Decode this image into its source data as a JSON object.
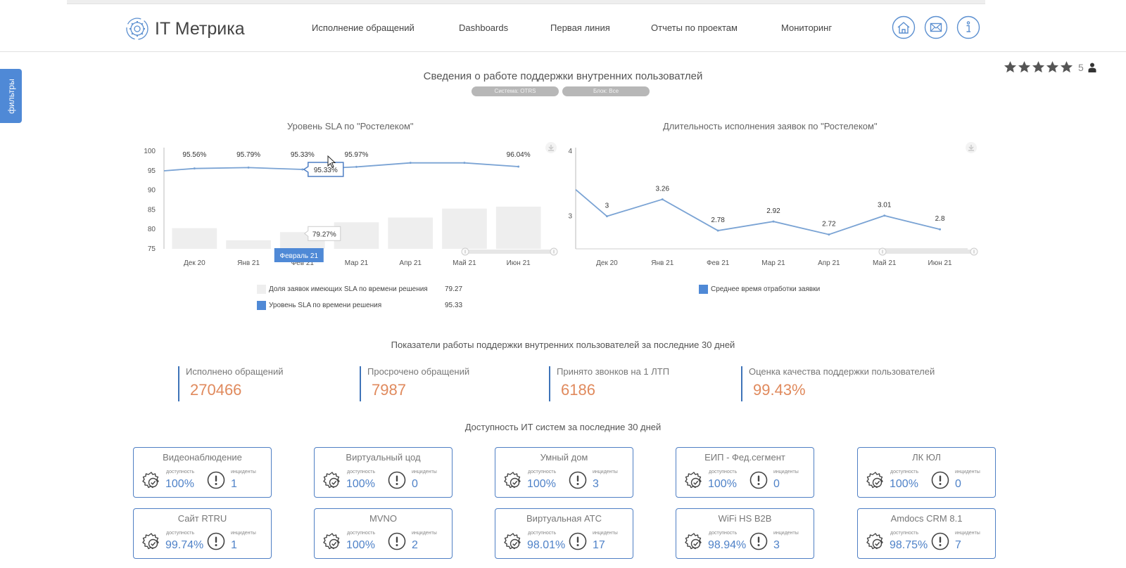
{
  "header": {
    "logo_text": "IT Метрика",
    "nav": [
      {
        "label": "Исполнение обращений"
      },
      {
        "label": "Dashboards"
      },
      {
        "label": "Первая линия"
      },
      {
        "label": "Отчеты по проектам"
      },
      {
        "label": "Мониторинг"
      }
    ],
    "icons": [
      "home-icon",
      "mail-icon",
      "info-icon"
    ]
  },
  "filters_tab": {
    "label": "фильтры"
  },
  "rating": {
    "stars": 5,
    "count": "5"
  },
  "page_title": "Сведения о работе поддержки внутренних пользоватлей",
  "chips": [
    {
      "label": "Система: OTRS"
    },
    {
      "label": "Блок: Все"
    }
  ],
  "chart_data": [
    {
      "type": "bar",
      "title": "Уровень SLA по \"Ростелеком\"",
      "categories": [
        "Дек 20",
        "Янв 21",
        "Фев 21",
        "Мар 21",
        "Апр 21",
        "Май 21",
        "Июн 21"
      ],
      "ylim": [
        75,
        100
      ],
      "yticks": [
        100,
        95,
        90,
        85,
        80,
        75
      ],
      "series": [
        {
          "name": "Доля заявок имеющих SLA по времени решения",
          "type": "bar",
          "color": "#eeeeee",
          "values": [
            80.3,
            77.2,
            79.27,
            81.8,
            83.0,
            85.3,
            85.8
          ]
        },
        {
          "name": "Уровень SLA по времени решения",
          "type": "line",
          "color": "#7aa3d4",
          "values": [
            95.56,
            95.79,
            95.33,
            95.97,
            97.0,
            97.0,
            96.04
          ]
        }
      ],
      "line_labels": [
        "95.56%",
        "95.79%",
        "95.33%",
        "95.97%",
        "",
        "",
        "96.04%"
      ],
      "tooltip": {
        "line_value": "95.33%",
        "bar_value": "79.27%",
        "category_label": "Февраль 21"
      },
      "legend_values": [
        "79.27",
        "95.33"
      ],
      "legend_placement": "bottom"
    },
    {
      "type": "line",
      "title": "Длительность исполнения заявок по \"Ростелеком\"",
      "categories": [
        "Дек 20",
        "Янв 21",
        "Фев 21",
        "Мар 21",
        "Апр 21",
        "Май 21",
        "Июн 21"
      ],
      "ylim": [
        2.5,
        4
      ],
      "yticks": [
        4,
        3
      ],
      "series": [
        {
          "name": "Среднее время отработки заявки",
          "color": "#7aa3d4",
          "values": [
            3.0,
            3.26,
            2.78,
            2.92,
            2.72,
            3.01,
            2.8
          ]
        }
      ],
      "value_labels": [
        "3",
        "3.26",
        "2.78",
        "2.92",
        "2.72",
        "3.01",
        "2.8"
      ],
      "start_value": 3.41,
      "legend_placement": "bottom"
    }
  ],
  "kpi_section_title": "Показатели работы поддержки внутренних пользователей за последние 30 дней",
  "kpis": [
    {
      "label": "Исполнено обращений",
      "value": "270466"
    },
    {
      "label": "Просрочено обращений",
      "value": "7987"
    },
    {
      "label": "Принято звонков на 1 ЛТП",
      "value": "6186"
    },
    {
      "label": "Оценка качества поддержки пользователей",
      "value": "99.43%"
    }
  ],
  "availability_title": "Доступность ИТ систем за последние 30 дней",
  "systems_labels": {
    "availability": "доступность",
    "incidents": "инциденты"
  },
  "systems": [
    {
      "name": "Видеонаблюдение",
      "availability": "100%",
      "incidents": "1"
    },
    {
      "name": "Виртуальный цод",
      "availability": "100%",
      "incidents": "0"
    },
    {
      "name": "Умный дом",
      "availability": "100%",
      "incidents": "3"
    },
    {
      "name": "ЕИП - Фед.сегмент",
      "availability": "100%",
      "incidents": "0"
    },
    {
      "name": "ЛК ЮЛ",
      "availability": "100%",
      "incidents": "0"
    },
    {
      "name": "Сайт RTRU",
      "availability": "99.74%",
      "incidents": "1"
    },
    {
      "name": "MVNO",
      "availability": "100%",
      "incidents": "2"
    },
    {
      "name": "Виртуальная АТС",
      "availability": "98.01%",
      "incidents": "17"
    },
    {
      "name": "WiFi HS B2B",
      "availability": "98.94%",
      "incidents": "3"
    },
    {
      "name": "Amdocs CRM 8.1",
      "availability": "98.75%",
      "incidents": "7"
    }
  ],
  "colors": {
    "accent": "#4f89d6",
    "kpi_value": "#e08a5d",
    "line": "#7aa3d4",
    "bar": "#eeeeee"
  }
}
